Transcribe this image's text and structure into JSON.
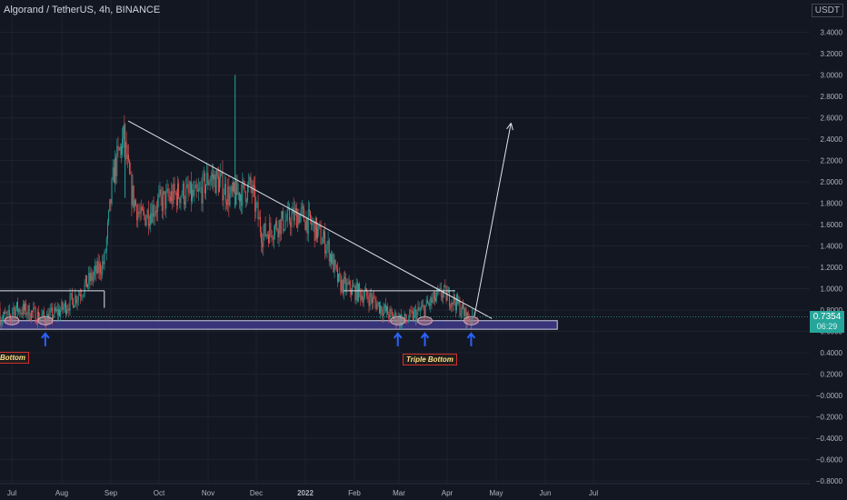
{
  "header": {
    "title": "Algorand / TetherUS, 4h, BINANCE",
    "currency": "USDT"
  },
  "price": {
    "current": "0.7354",
    "countdown": "06:29"
  },
  "annotations": {
    "left_label": "Bottom",
    "right_label": "Triple Bottom"
  },
  "colors": {
    "background": "#131722",
    "up": "#26a69a",
    "down": "#ef5350",
    "support_zone": "#3f3a8a",
    "arrow": "#2962ff"
  },
  "chart_data": {
    "type": "candlestick",
    "title": "",
    "xlabel": "",
    "ylabel": "",
    "ylim": [
      -0.8,
      3.4
    ],
    "x_ticks": [
      "Jul",
      "Aug",
      "Sep",
      "Oct",
      "Nov",
      "Dec",
      "2022",
      "Feb",
      "Mar",
      "Apr",
      "May",
      "Jun",
      "Jul"
    ],
    "y_ticks": [
      "3.4000",
      "3.2000",
      "3.0000",
      "2.8000",
      "2.6000",
      "2.4000",
      "2.2000",
      "2.0000",
      "1.8000",
      "1.6000",
      "1.4000",
      "1.2000",
      "1.0000",
      "0.8000",
      "0.6000",
      "0.4000",
      "0.2000",
      "−0.0000",
      "−0.2000",
      "−0.4000",
      "−0.6000",
      "−0.8000"
    ],
    "price_path": [
      {
        "t": "Jul 01",
        "v": 0.82
      },
      {
        "t": "Jul 10",
        "v": 0.79
      },
      {
        "t": "Jul 22",
        "v": 0.72
      },
      {
        "t": "Aug 01",
        "v": 0.8
      },
      {
        "t": "Aug 10",
        "v": 0.92
      },
      {
        "t": "Aug 20",
        "v": 1.1
      },
      {
        "t": "Aug 28",
        "v": 1.25
      },
      {
        "t": "Sep 03",
        "v": 2.1
      },
      {
        "t": "Sep 09",
        "v": 2.4
      },
      {
        "t": "Sep 14",
        "v": 1.9
      },
      {
        "t": "Sep 20",
        "v": 1.65
      },
      {
        "t": "Oct 01",
        "v": 1.8
      },
      {
        "t": "Oct 15",
        "v": 1.9
      },
      {
        "t": "Oct 25",
        "v": 1.85
      },
      {
        "t": "Nov 02",
        "v": 2.05
      },
      {
        "t": "Nov 08",
        "v": 2.0
      },
      {
        "t": "Nov 15",
        "v": 1.85
      },
      {
        "t": "Nov 28",
        "v": 1.95
      },
      {
        "t": "Dec 05",
        "v": 1.5
      },
      {
        "t": "Dec 15",
        "v": 1.6
      },
      {
        "t": "Dec 28",
        "v": 1.7
      },
      {
        "t": "Jan 05",
        "v": 1.6
      },
      {
        "t": "Jan 15",
        "v": 1.4
      },
      {
        "t": "Jan 22",
        "v": 1.05
      },
      {
        "t": "Feb 01",
        "v": 0.98
      },
      {
        "t": "Feb 10",
        "v": 0.92
      },
      {
        "t": "Feb 24",
        "v": 0.74
      },
      {
        "t": "Mar 05",
        "v": 0.7
      },
      {
        "t": "Mar 15",
        "v": 0.8
      },
      {
        "t": "Mar 28",
        "v": 0.96
      },
      {
        "t": "Apr 05",
        "v": 0.88
      },
      {
        "t": "Apr 13",
        "v": 0.72
      },
      {
        "t": "Apr 16",
        "v": 0.7354
      }
    ],
    "spikes": [
      {
        "t": "Nov 18",
        "high": 3.0,
        "low": 1.75
      },
      {
        "t": "Sep 10",
        "high": 2.55,
        "low": 1.85
      }
    ],
    "drawings": {
      "descending_trendline": {
        "from": {
          "t": "Sep 12",
          "v": 2.57
        },
        "to": {
          "t": "Apr 28",
          "v": 0.72
        }
      },
      "support_zone": {
        "top": 0.7,
        "bottom": 0.62,
        "to": "Jun 08"
      },
      "resistance_left": {
        "v": 0.98,
        "to": "Aug 28"
      },
      "resistance_right": {
        "v": 0.98,
        "from": "Jan 25",
        "to": "Apr 05"
      },
      "projection_arrow": {
        "from": {
          "t": "Apr 17",
          "v": 0.74
        },
        "to": {
          "t": "May 10",
          "v": 2.55
        }
      },
      "bottom_markers": [
        "Jul 22",
        "Feb 28",
        "Mar 17",
        "Apr 15"
      ],
      "ellipses": [
        "Jul 01",
        "Jul 22",
        "Feb 28",
        "Mar 17",
        "Apr 15"
      ]
    }
  }
}
